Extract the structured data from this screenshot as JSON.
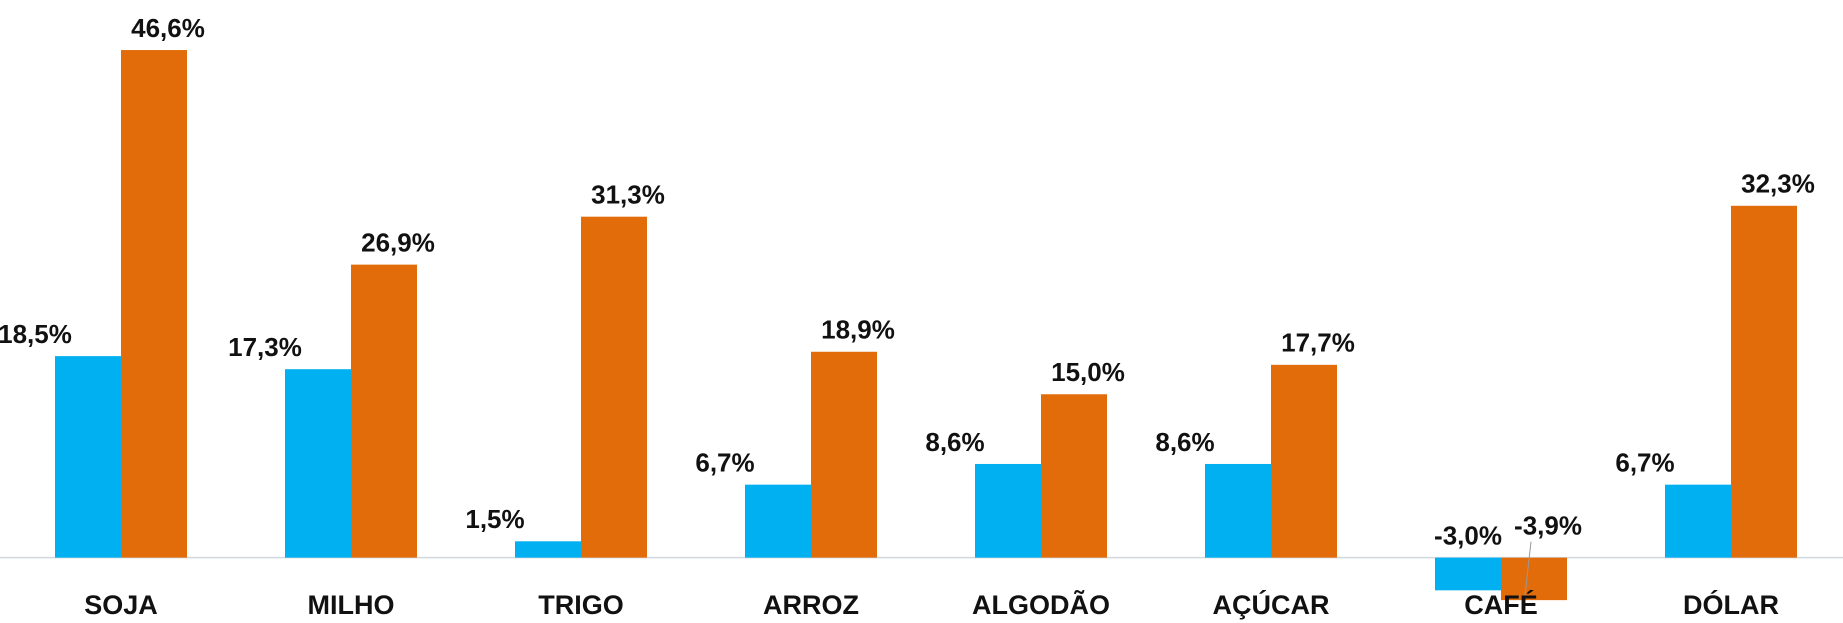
{
  "chart_data": {
    "type": "bar",
    "categories": [
      "SOJA",
      "MILHO",
      "TRIGO",
      "ARROZ",
      "ALGODÃO",
      "AÇÚCAR",
      "CAFÉ",
      "DÓLAR"
    ],
    "series": [
      {
        "color": "#00b0f0",
        "values": [
          18.5,
          17.3,
          1.5,
          6.7,
          8.6,
          8.6,
          -3.0,
          6.7
        ],
        "value_labels": [
          "18,5%",
          "17,3%",
          "1,5%",
          "6,7%",
          "8,6%",
          "8,6%",
          "-3,0%",
          "6,7%"
        ]
      },
      {
        "color": "#e36c0a",
        "values": [
          46.6,
          26.9,
          31.3,
          18.9,
          15.0,
          17.7,
          -3.9,
          32.3
        ],
        "value_labels": [
          "46,6%",
          "26,9%",
          "31,3%",
          "18,9%",
          "15,0%",
          "17,7%",
          "-3,9%",
          "32,3%"
        ]
      }
    ],
    "ylim": [
      -6,
      50
    ]
  }
}
